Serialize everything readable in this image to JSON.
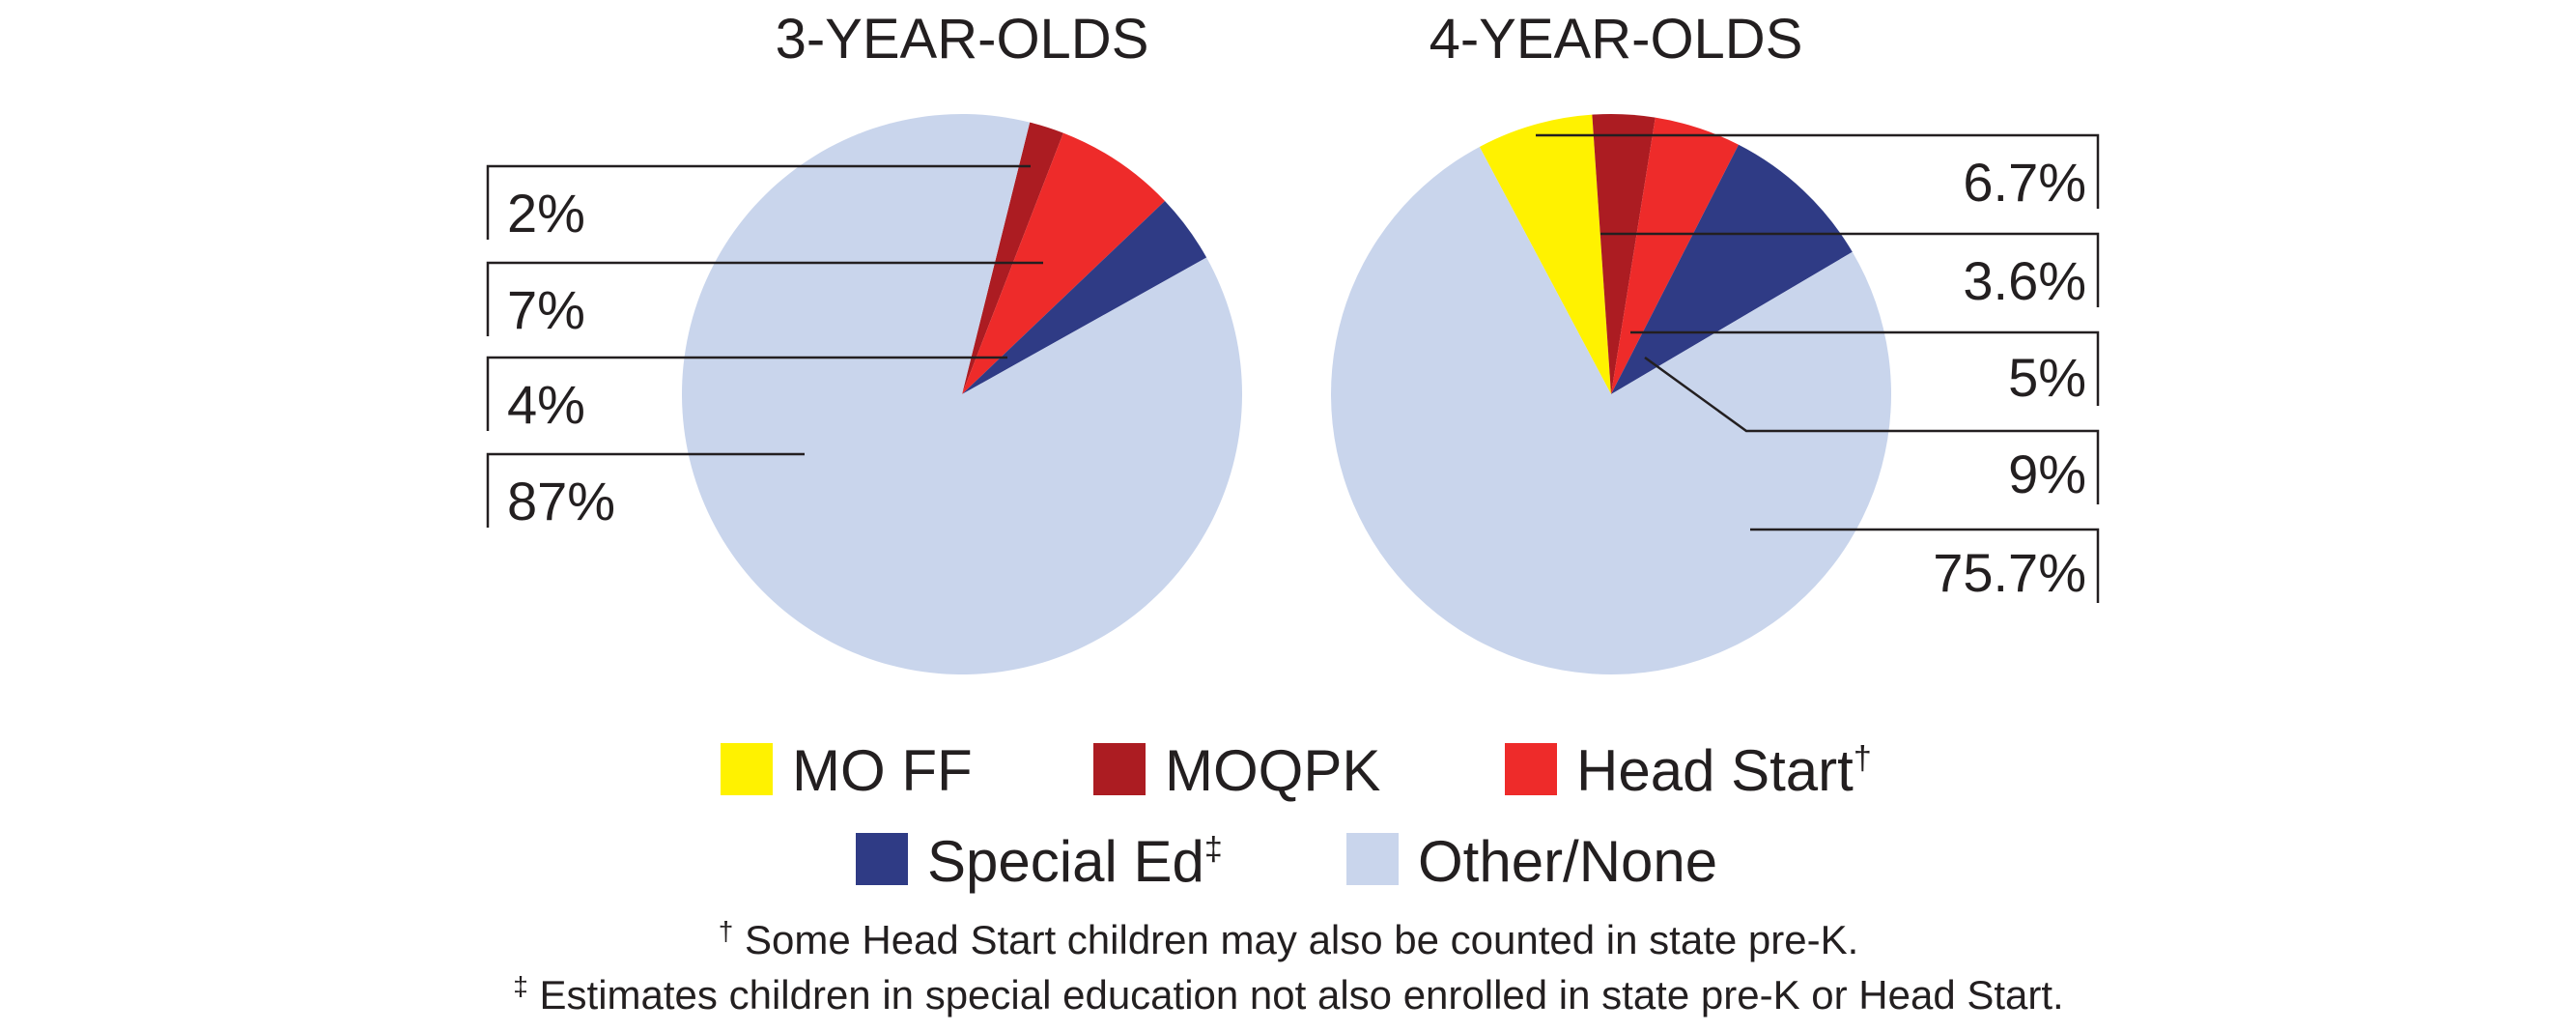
{
  "colors": {
    "mo_ff": "#fff200",
    "moqpk": "#ac1c22",
    "head_start": "#ee2b2a",
    "special_ed": "#2f3b85",
    "other": "#c9d5ec"
  },
  "legend": [
    {
      "key": "mo_ff",
      "label": "MO FF",
      "marker": ""
    },
    {
      "key": "moqpk",
      "label": "MOQPK",
      "marker": ""
    },
    {
      "key": "head_start",
      "label": "Head Start",
      "marker": "†"
    },
    {
      "key": "special_ed",
      "label": "Special Ed",
      "marker": "‡"
    },
    {
      "key": "other",
      "label": "Other/None",
      "marker": ""
    }
  ],
  "footnotes": [
    {
      "marker": "†",
      "text": " Some Head Start children may also be counted in state pre-K."
    },
    {
      "marker": "‡",
      "text": " Estimates children in special education not also enrolled in state pre-K or Head Start."
    }
  ],
  "chart_data": [
    {
      "type": "pie",
      "title": "3-YEAR-OLDS",
      "slices": [
        {
          "key": "moqpk",
          "name": "MOQPK",
          "value": 2,
          "label": "2%"
        },
        {
          "key": "head_start",
          "name": "Head Start",
          "value": 7,
          "label": "7%"
        },
        {
          "key": "special_ed",
          "name": "Special Ed",
          "value": 4,
          "label": "4%"
        },
        {
          "key": "other",
          "name": "Other/None",
          "value": 87,
          "label": "87%"
        }
      ]
    },
    {
      "type": "pie",
      "title": "4-YEAR-OLDS",
      "slices": [
        {
          "key": "mo_ff",
          "name": "MO FF",
          "value": 6.7,
          "label": "6.7%"
        },
        {
          "key": "moqpk",
          "name": "MOQPK",
          "value": 3.6,
          "label": "3.6%"
        },
        {
          "key": "head_start",
          "name": "Head Start",
          "value": 5,
          "label": "5%"
        },
        {
          "key": "special_ed",
          "name": "Special Ed",
          "value": 9,
          "label": "9%"
        },
        {
          "key": "other",
          "name": "Other/None",
          "value": 75.7,
          "label": "75.7%"
        }
      ]
    }
  ]
}
